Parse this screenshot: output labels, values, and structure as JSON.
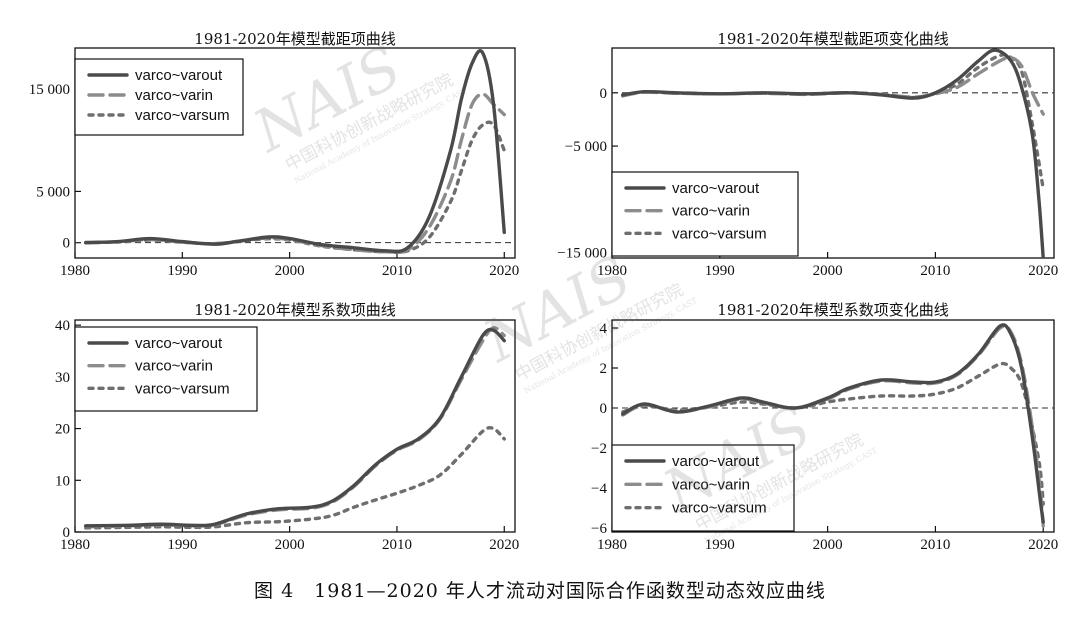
{
  "caption": "图 4　1981—2020 年人才流动对国际合作函数型动态效应曲线",
  "watermark": {
    "logo": "NAIS",
    "cn": "中国科协创新战略研究院",
    "en": "National Academy of Innovation Strategy, CAST"
  },
  "colors": {
    "varout": "#4a4a4a",
    "varin": "#8c8c8c",
    "varsum": "#6e6e6e",
    "zero_line": "#333333"
  },
  "chart_data": [
    {
      "type": "line",
      "title": "1981-2020年模型截距项曲线",
      "xlim": [
        1980,
        2021
      ],
      "ylim": [
        -1500,
        19000
      ],
      "xticks": [
        1980,
        1990,
        2000,
        2010,
        2020
      ],
      "yticks": [
        0,
        5000,
        15000
      ],
      "ytick_labels": [
        "0",
        "5 000",
        "15 000"
      ],
      "zero_line": true,
      "legend": {
        "placement": "top-left",
        "entries": [
          "varco~varout",
          "varco~varin",
          "varco~varsum"
        ]
      },
      "series": [
        {
          "name": "varco~varout",
          "style": "solid",
          "points": [
            [
              1981,
              0
            ],
            [
              1984,
              100
            ],
            [
              1987,
              400
            ],
            [
              1990,
              100
            ],
            [
              1993,
              -150
            ],
            [
              1995,
              100
            ],
            [
              1998,
              550
            ],
            [
              2000,
              400
            ],
            [
              2003,
              -200
            ],
            [
              2006,
              -500
            ],
            [
              2009,
              -800
            ],
            [
              2011,
              -500
            ],
            [
              2013,
              2500
            ],
            [
              2015,
              9000
            ],
            [
              2016,
              14000
            ],
            [
              2017,
              17500
            ],
            [
              2018,
              18500
            ],
            [
              2019,
              13500
            ],
            [
              2020,
              1000
            ]
          ]
        },
        {
          "name": "varco~varin",
          "style": "dashed",
          "points": [
            [
              1981,
              0
            ],
            [
              1984,
              80
            ],
            [
              1987,
              300
            ],
            [
              1990,
              50
            ],
            [
              1993,
              -100
            ],
            [
              1996,
              250
            ],
            [
              1998,
              450
            ],
            [
              2000,
              300
            ],
            [
              2003,
              -300
            ],
            [
              2006,
              -700
            ],
            [
              2009,
              -900
            ],
            [
              2011,
              -700
            ],
            [
              2013,
              1500
            ],
            [
              2015,
              6000
            ],
            [
              2016,
              10000
            ],
            [
              2017,
              13500
            ],
            [
              2018,
              14500
            ],
            [
              2019,
              13500
            ],
            [
              2020,
              12500
            ]
          ]
        },
        {
          "name": "varco~varsum",
          "style": "dotted",
          "points": [
            [
              1981,
              0
            ],
            [
              1984,
              60
            ],
            [
              1987,
              250
            ],
            [
              1990,
              40
            ],
            [
              1993,
              -100
            ],
            [
              1996,
              200
            ],
            [
              1998,
              380
            ],
            [
              2000,
              250
            ],
            [
              2003,
              -350
            ],
            [
              2006,
              -700
            ],
            [
              2009,
              -900
            ],
            [
              2011,
              -800
            ],
            [
              2013,
              500
            ],
            [
              2015,
              4000
            ],
            [
              2016,
              7000
            ],
            [
              2017,
              10000
            ],
            [
              2018,
              11500
            ],
            [
              2019,
              11500
            ],
            [
              2020,
              9000
            ]
          ]
        }
      ]
    },
    {
      "type": "line",
      "title": "1981-2020年模型截距项变化曲线",
      "xlim": [
        1980,
        2021
      ],
      "ylim": [
        -15500,
        4200
      ],
      "xticks": [
        1980,
        1990,
        2000,
        2010,
        2020
      ],
      "yticks": [
        0,
        -5000,
        -15000
      ],
      "ytick_labels": [
        "0",
        "−5 000",
        "−15 000"
      ],
      "zero_line": true,
      "legend": {
        "placement": "bottom-left",
        "entries": [
          "varco~varout",
          "varco~varin",
          "varco~varsum"
        ]
      },
      "series": [
        {
          "name": "varco~varout",
          "style": "solid",
          "points": [
            [
              1981,
              -200
            ],
            [
              1983,
              100
            ],
            [
              1986,
              0
            ],
            [
              1990,
              -100
            ],
            [
              1994,
              0
            ],
            [
              1998,
              -100
            ],
            [
              2002,
              0
            ],
            [
              2005,
              -200
            ],
            [
              2008,
              -500
            ],
            [
              2010,
              0
            ],
            [
              2012,
              1200
            ],
            [
              2014,
              3000
            ],
            [
              2015.5,
              4000
            ],
            [
              2017,
              3000
            ],
            [
              2018,
              500
            ],
            [
              2019,
              -4000
            ],
            [
              2019.6,
              -10000
            ],
            [
              2020,
              -15500
            ]
          ]
        },
        {
          "name": "varco~varin",
          "style": "dashed",
          "points": [
            [
              1981,
              -300
            ],
            [
              1983,
              50
            ],
            [
              1986,
              -50
            ],
            [
              1990,
              -100
            ],
            [
              1994,
              -50
            ],
            [
              1998,
              -150
            ],
            [
              2002,
              0
            ],
            [
              2005,
              -150
            ],
            [
              2008,
              -400
            ],
            [
              2010,
              -100
            ],
            [
              2012,
              500
            ],
            [
              2014,
              1800
            ],
            [
              2016,
              3000
            ],
            [
              2017,
              3300
            ],
            [
              2018,
              2500
            ],
            [
              2019,
              0
            ],
            [
              2020,
              -2000
            ]
          ]
        },
        {
          "name": "varco~varsum",
          "style": "dotted",
          "points": [
            [
              1981,
              -250
            ],
            [
              1983,
              80
            ],
            [
              1986,
              -30
            ],
            [
              1990,
              -100
            ],
            [
              1994,
              -30
            ],
            [
              1998,
              -120
            ],
            [
              2002,
              0
            ],
            [
              2005,
              -150
            ],
            [
              2008,
              -450
            ],
            [
              2010,
              -50
            ],
            [
              2012,
              800
            ],
            [
              2014,
              2400
            ],
            [
              2016,
              3500
            ],
            [
              2017,
              3300
            ],
            [
              2018,
              2000
            ],
            [
              2019,
              -3000
            ],
            [
              2020,
              -9000
            ]
          ]
        }
      ]
    },
    {
      "type": "line",
      "title": "1981-2020年模型系数项曲线",
      "xlim": [
        1980,
        2021
      ],
      "ylim": [
        0,
        41
      ],
      "xticks": [
        1980,
        1990,
        2000,
        2010,
        2020
      ],
      "yticks": [
        0,
        10,
        20,
        30,
        40
      ],
      "ytick_labels": [
        "0",
        "10",
        "20",
        "30",
        "40"
      ],
      "zero_line": false,
      "legend": {
        "placement": "top-left",
        "entries": [
          "varco~varout",
          "varco~varin",
          "varco~varsum"
        ]
      },
      "series": [
        {
          "name": "varco~varout",
          "style": "solid",
          "points": [
            [
              1981,
              1.2
            ],
            [
              1985,
              1.3
            ],
            [
              1988,
              1.5
            ],
            [
              1991,
              1.3
            ],
            [
              1993,
              1.5
            ],
            [
              1996,
              3.5
            ],
            [
              1999,
              4.5
            ],
            [
              2002,
              4.8
            ],
            [
              2004,
              6
            ],
            [
              2006,
              9
            ],
            [
              2008,
              13
            ],
            [
              2010,
              16
            ],
            [
              2012,
              18
            ],
            [
              2014,
              22
            ],
            [
              2016,
              30
            ],
            [
              2018,
              38
            ],
            [
              2019,
              39
            ],
            [
              2020,
              37
            ]
          ]
        },
        {
          "name": "varco~varin",
          "style": "dashed",
          "points": [
            [
              1981,
              1.0
            ],
            [
              1985,
              1.2
            ],
            [
              1988,
              1.4
            ],
            [
              1991,
              1.2
            ],
            [
              1993,
              1.4
            ],
            [
              1996,
              3.3
            ],
            [
              1999,
              4.3
            ],
            [
              2002,
              4.6
            ],
            [
              2004,
              5.8
            ],
            [
              2006,
              8.8
            ],
            [
              2008,
              12.8
            ],
            [
              2010,
              15.8
            ],
            [
              2012,
              17.8
            ],
            [
              2014,
              21.8
            ],
            [
              2016,
              29.5
            ],
            [
              2018,
              37
            ],
            [
              2019,
              39.5
            ],
            [
              2020,
              38
            ]
          ]
        },
        {
          "name": "varco~varsum",
          "style": "dotted",
          "points": [
            [
              1981,
              0.8
            ],
            [
              1985,
              0.9
            ],
            [
              1988,
              1.0
            ],
            [
              1991,
              0.9
            ],
            [
              1993,
              1.0
            ],
            [
              1996,
              1.8
            ],
            [
              1999,
              2.0
            ],
            [
              2002,
              2.5
            ],
            [
              2004,
              3.2
            ],
            [
              2006,
              4.8
            ],
            [
              2008,
              6.2
            ],
            [
              2010,
              7.5
            ],
            [
              2012,
              9
            ],
            [
              2014,
              11
            ],
            [
              2016,
              15
            ],
            [
              2018,
              19.5
            ],
            [
              2019,
              20
            ],
            [
              2020,
              18
            ]
          ]
        }
      ]
    },
    {
      "type": "line",
      "title": "1981-2020年模型系数项变化曲线",
      "xlim": [
        1980,
        2021
      ],
      "ylim": [
        -6.2,
        4.4
      ],
      "xticks": [
        1980,
        1990,
        2000,
        2010,
        2020
      ],
      "yticks": [
        -6,
        -4,
        -2,
        0,
        2,
        4
      ],
      "ytick_labels": [
        "−6",
        "−4",
        "−2",
        "0",
        "2",
        "4"
      ],
      "zero_line": true,
      "legend": {
        "placement": "bottom-left",
        "entries": [
          "varco~varout",
          "varco~varin",
          "varco~varsum"
        ]
      },
      "series": [
        {
          "name": "varco~varout",
          "style": "solid",
          "points": [
            [
              1981,
              -0.3
            ],
            [
              1983,
              0.2
            ],
            [
              1986,
              -0.2
            ],
            [
              1989,
              0.1
            ],
            [
              1992,
              0.5
            ],
            [
              1994,
              0.3
            ],
            [
              1997,
              0
            ],
            [
              2000,
              0.5
            ],
            [
              2002,
              1
            ],
            [
              2005,
              1.4
            ],
            [
              2008,
              1.3
            ],
            [
              2010,
              1.3
            ],
            [
              2012,
              1.7
            ],
            [
              2014,
              2.7
            ],
            [
              2016,
              4.1
            ],
            [
              2017,
              3.7
            ],
            [
              2018,
              2.0
            ],
            [
              2019,
              -1.5
            ],
            [
              2019.7,
              -4.5
            ],
            [
              2020,
              -5.7
            ]
          ]
        },
        {
          "name": "varco~varin",
          "style": "dashed",
          "points": [
            [
              1981,
              -0.35
            ],
            [
              1983,
              0.15
            ],
            [
              1986,
              -0.15
            ],
            [
              1989,
              0.05
            ],
            [
              1992,
              0.45
            ],
            [
              1994,
              0.25
            ],
            [
              1997,
              0
            ],
            [
              2000,
              0.45
            ],
            [
              2002,
              0.95
            ],
            [
              2005,
              1.35
            ],
            [
              2008,
              1.25
            ],
            [
              2010,
              1.25
            ],
            [
              2012,
              1.65
            ],
            [
              2014,
              2.65
            ],
            [
              2016,
              4.0
            ],
            [
              2017,
              3.8
            ],
            [
              2018,
              2.2
            ],
            [
              2019,
              -1.0
            ],
            [
              2019.7,
              -4.0
            ],
            [
              2020,
              -5.9
            ]
          ]
        },
        {
          "name": "varco~varsum",
          "style": "dotted",
          "points": [
            [
              1981,
              -0.2
            ],
            [
              1983,
              0.1
            ],
            [
              1986,
              -0.1
            ],
            [
              1989,
              0.05
            ],
            [
              1992,
              0.3
            ],
            [
              1994,
              0.2
            ],
            [
              1997,
              0
            ],
            [
              2000,
              0.3
            ],
            [
              2002,
              0.45
            ],
            [
              2005,
              0.6
            ],
            [
              2008,
              0.6
            ],
            [
              2010,
              0.7
            ],
            [
              2012,
              1.0
            ],
            [
              2014,
              1.6
            ],
            [
              2016,
              2.2
            ],
            [
              2017,
              2.0
            ],
            [
              2018,
              1.2
            ],
            [
              2019,
              -1.0
            ],
            [
              2019.7,
              -3.0
            ],
            [
              2020,
              -4.8
            ]
          ]
        }
      ]
    }
  ]
}
